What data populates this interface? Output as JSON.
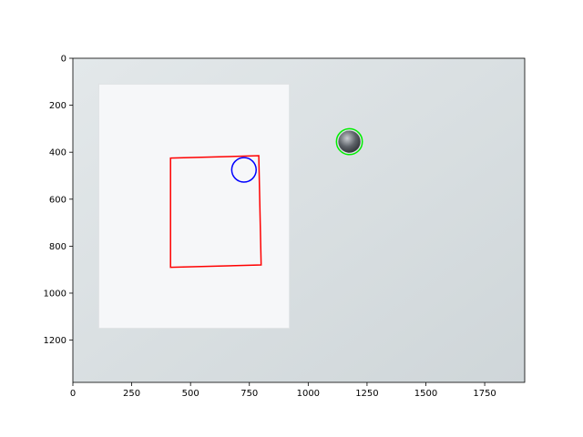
{
  "chart_data": {
    "type": "image",
    "title": "",
    "xlabel": "",
    "ylabel": "",
    "xlim": [
      0,
      1920
    ],
    "ylim": [
      1380,
      0
    ],
    "y_inverted": true,
    "grid": false,
    "legend": "none",
    "x_ticks": [
      0,
      250,
      500,
      750,
      1000,
      1250,
      1500,
      1750
    ],
    "y_ticks": [
      0,
      200,
      400,
      600,
      800,
      1000,
      1200
    ],
    "background": {
      "description": "photo of a white paper sheet and a coin on a light grey surface",
      "colors": {
        "surface": "#cfd6d9",
        "surface_light": "#e3e8ea",
        "paper": "#f6f7f9",
        "paper_edge": "#dfe2e4",
        "coin": "#5d6268"
      }
    },
    "paper": {
      "points": [
        [
          110,
          110
        ],
        [
          920,
          110
        ],
        [
          920,
          1150
        ],
        [
          110,
          1150
        ]
      ]
    },
    "coin": {
      "cx": 1175,
      "cy": 355,
      "r": 47
    },
    "overlays": [
      {
        "kind": "polygon",
        "color": "#ff0000",
        "points": [
          [
            415,
            425
          ],
          [
            790,
            415
          ],
          [
            800,
            880
          ],
          [
            415,
            890
          ]
        ]
      },
      {
        "kind": "circle",
        "color": "#0000ff",
        "cx": 727,
        "cy": 475,
        "r": 52
      },
      {
        "kind": "circle",
        "color": "#00ee00",
        "cx": 1175,
        "cy": 355,
        "r": 55
      }
    ]
  }
}
